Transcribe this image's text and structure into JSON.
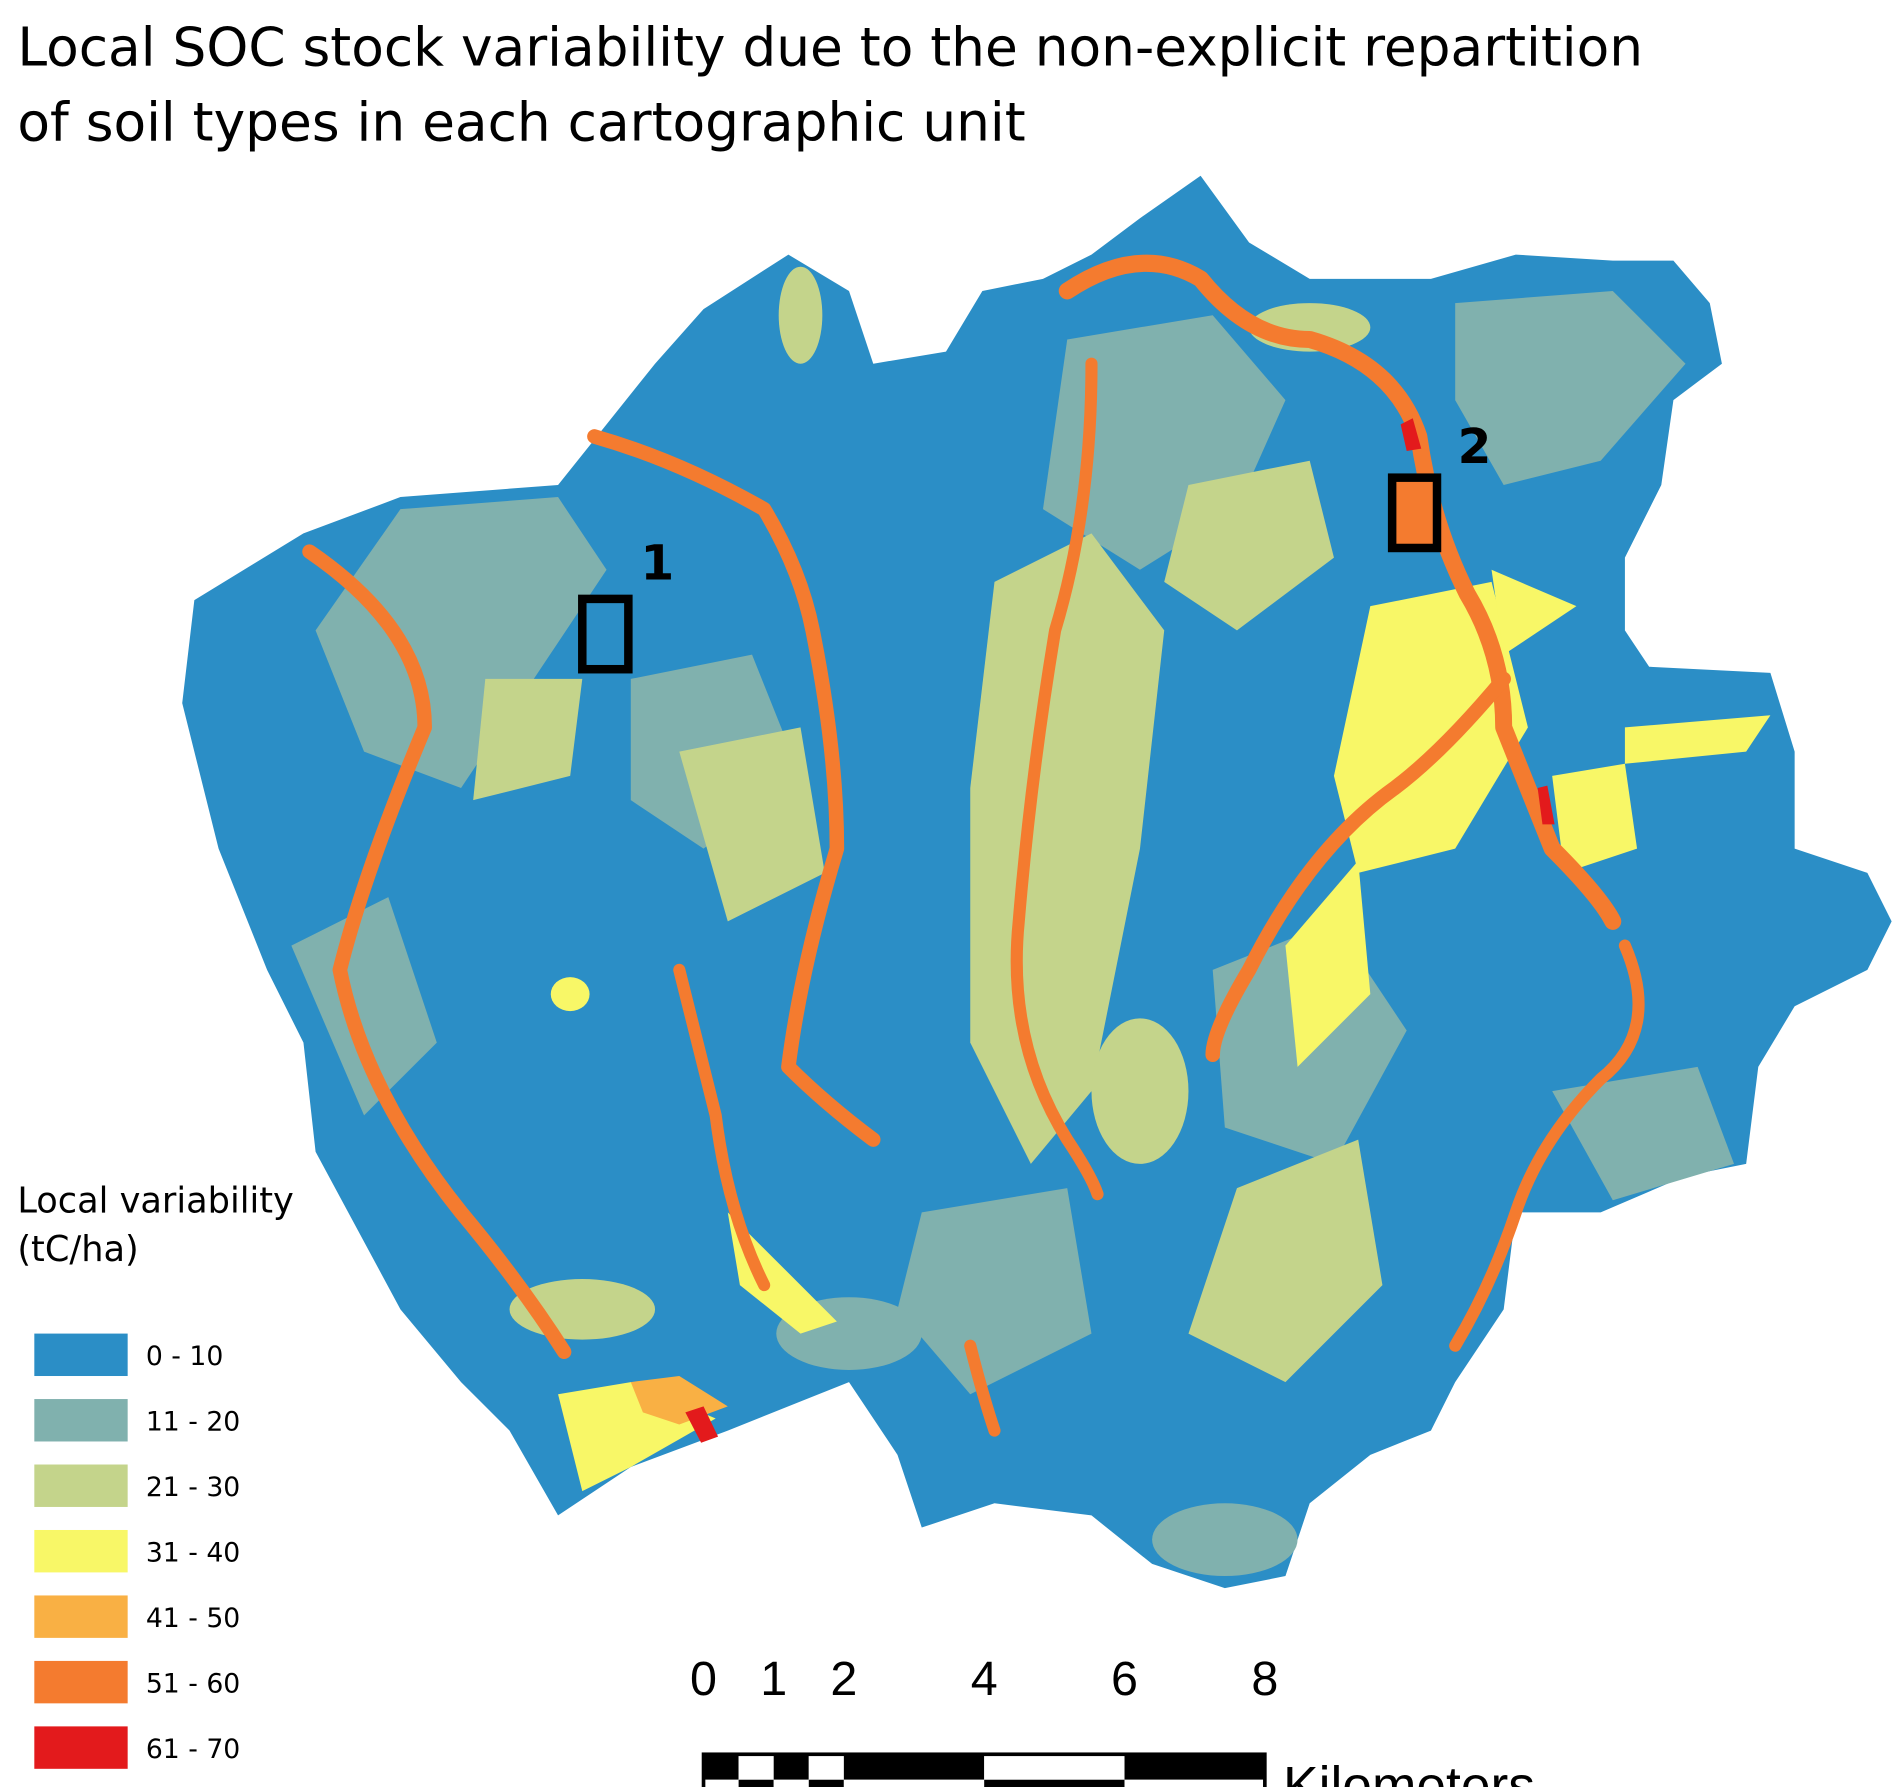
{
  "title": [
    "Local SOC stock variability due to the non-explicit repartition",
    "of soil types in each cartographic unit"
  ],
  "legend": {
    "title": [
      "Local variability",
      "(tC/ha)"
    ],
    "classes": [
      {
        "label": "0 - 10",
        "color": "#2b8ec6"
      },
      {
        "label": "11 - 20",
        "color": "#80b1ae"
      },
      {
        "label": "21 - 30",
        "color": "#c4d48b"
      },
      {
        "label": "31 - 40",
        "color": "#f8f767"
      },
      {
        "label": "41 - 50",
        "color": "#f9b044"
      },
      {
        "label": "51 - 60",
        "color": "#f47b2f"
      },
      {
        "label": "61 - 70",
        "color": "#e31a1c"
      }
    ]
  },
  "sites": [
    {
      "label": "1"
    },
    {
      "label": "2"
    }
  ],
  "scale_bar": {
    "ticks": [
      0,
      1,
      2,
      4,
      6,
      8
    ],
    "unit": "Kilometers"
  }
}
